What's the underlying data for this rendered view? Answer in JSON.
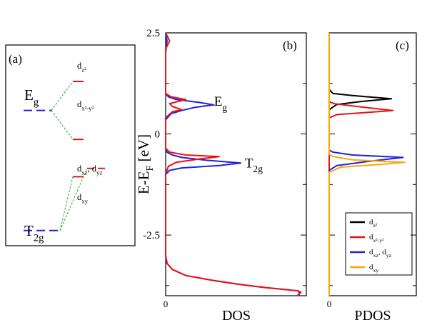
{
  "chart_data": [
    {
      "panel": "a",
      "type": "energy-level-diagram",
      "label": "(a)",
      "groups": [
        {
          "name": "E",
          "sub": "g",
          "color": "#2222dd",
          "energy": 1.3
        },
        {
          "name": "T",
          "sub": "2g",
          "color": "#2222dd",
          "energy": -1.6
        }
      ],
      "levels": [
        {
          "name": "d",
          "sub": "z²",
          "color": "#ee1111",
          "energy": 2.0,
          "parent": 0
        },
        {
          "name": "d",
          "sub": "x²-y²",
          "color": "#ee1111",
          "energy": 0.6,
          "parent": 0
        },
        {
          "name": "d",
          "sub": "xy",
          "color": "#ee1111",
          "energy": -0.3,
          "parent": 1
        },
        {
          "name": "d",
          "sub": "xz",
          "name2": ", d",
          "sub2": "yz",
          "color": "#ee1111",
          "energy": -0.1,
          "parent": 1
        }
      ],
      "connector_color": "#22aa22"
    },
    {
      "panel": "b",
      "type": "line",
      "label": "(b)",
      "xlabel": "DOS",
      "ylabel": "E-E",
      "ylabel_sub": "F",
      "ylabel_unit": " [eV]",
      "ylim": [
        -4.0,
        2.5
      ],
      "xlim": [
        0,
        1
      ],
      "yticks": [
        2.5,
        0,
        -2.5
      ],
      "yticklabels": [
        "2.5",
        "0",
        "-2.5"
      ],
      "xticks": [
        0
      ],
      "xticklabels": [
        "0"
      ],
      "annotations": [
        {
          "text": "E",
          "sub": "g",
          "x": 0.34,
          "y": 0.8
        },
        {
          "text": "T",
          "sub": "2g",
          "x": 0.57,
          "y": -0.72
        }
      ],
      "series": [
        {
          "color": "#2222dd",
          "points": [
            [
              0.0,
              2.5
            ],
            [
              0.01,
              2.3
            ],
            [
              0.0,
              2.0
            ],
            [
              0.0,
              1.3
            ],
            [
              0.0,
              1.0
            ],
            [
              0.02,
              0.92
            ],
            [
              0.08,
              0.85
            ],
            [
              0.25,
              0.78
            ],
            [
              0.36,
              0.72
            ],
            [
              0.22,
              0.66
            ],
            [
              0.12,
              0.58
            ],
            [
              0.04,
              0.5
            ],
            [
              0.0,
              0.35
            ],
            [
              0.0,
              -0.35
            ],
            [
              0.01,
              -0.45
            ],
            [
              0.05,
              -0.52
            ],
            [
              0.12,
              -0.58
            ],
            [
              0.3,
              -0.65
            ],
            [
              0.56,
              -0.72
            ],
            [
              0.4,
              -0.78
            ],
            [
              0.12,
              -0.84
            ],
            [
              0.03,
              -0.9
            ],
            [
              0.0,
              -1.0
            ],
            [
              0.0,
              -2.0
            ],
            [
              0.0,
              -3.0
            ],
            [
              0.01,
              -3.2
            ],
            [
              0.05,
              -3.35
            ],
            [
              0.15,
              -3.5
            ],
            [
              0.35,
              -3.62
            ],
            [
              0.55,
              -3.72
            ],
            [
              0.75,
              -3.8
            ],
            [
              0.9,
              -3.85
            ],
            [
              0.99,
              -3.88
            ],
            [
              1.0,
              -3.95
            ],
            [
              0.99,
              -4.0
            ]
          ]
        },
        {
          "color": "#ee1111",
          "points": [
            [
              0.0,
              2.5
            ],
            [
              0.03,
              2.3
            ],
            [
              0.0,
              2.1
            ],
            [
              0.0,
              1.3
            ],
            [
              0.0,
              1.0
            ],
            [
              0.04,
              0.92
            ],
            [
              0.15,
              0.85
            ],
            [
              0.09,
              0.8
            ],
            [
              0.03,
              0.75
            ],
            [
              0.05,
              0.68
            ],
            [
              0.12,
              0.6
            ],
            [
              0.05,
              0.55
            ],
            [
              0.0,
              0.4
            ],
            [
              0.0,
              -0.35
            ],
            [
              0.03,
              -0.45
            ],
            [
              0.15,
              -0.52
            ],
            [
              0.4,
              -0.56
            ],
            [
              0.25,
              -0.62
            ],
            [
              0.08,
              -0.7
            ],
            [
              0.02,
              -0.8
            ],
            [
              0.0,
              -1.0
            ],
            [
              0.0,
              -2.0
            ],
            [
              0.0,
              -3.0
            ],
            [
              0.01,
              -3.2
            ],
            [
              0.05,
              -3.35
            ],
            [
              0.15,
              -3.5
            ],
            [
              0.35,
              -3.62
            ],
            [
              0.55,
              -3.72
            ],
            [
              0.75,
              -3.8
            ],
            [
              0.9,
              -3.85
            ],
            [
              0.99,
              -3.88
            ],
            [
              1.01,
              -3.92
            ],
            [
              0.98,
              -4.0
            ]
          ]
        }
      ]
    },
    {
      "panel": "c",
      "type": "line",
      "label": "(c)",
      "xlabel": "PDOS",
      "ylim": [
        -4.0,
        2.5
      ],
      "xlim": [
        0,
        1
      ],
      "xticks": [
        0
      ],
      "xticklabels": [
        "0"
      ],
      "legend_position": "bottom-right",
      "series": [
        {
          "name": "d",
          "sub": "z²",
          "color": "#000000",
          "points": [
            [
              0.0,
              2.5
            ],
            [
              0.0,
              1.1
            ],
            [
              0.05,
              1.0
            ],
            [
              0.3,
              0.95
            ],
            [
              0.8,
              0.87
            ],
            [
              0.4,
              0.8
            ],
            [
              0.1,
              0.73
            ],
            [
              0.0,
              0.6
            ],
            [
              0.0,
              -4.0
            ]
          ]
        },
        {
          "name": "d",
          "sub": "x²-y²",
          "color": "#ee1111",
          "points": [
            [
              0.0,
              2.5
            ],
            [
              0.0,
              0.8
            ],
            [
              0.06,
              0.75
            ],
            [
              0.45,
              0.66
            ],
            [
              0.82,
              0.58
            ],
            [
              0.4,
              0.52
            ],
            [
              0.1,
              0.48
            ],
            [
              0.0,
              0.4
            ],
            [
              0.0,
              -4.0
            ]
          ]
        },
        {
          "name": "d",
          "sub": "xz",
          "name2": ", d",
          "sub2": "yz",
          "color": "#2222dd",
          "points": [
            [
              0.0,
              2.5
            ],
            [
              0.0,
              -0.4
            ],
            [
              0.05,
              -0.45
            ],
            [
              0.3,
              -0.52
            ],
            [
              0.95,
              -0.58
            ],
            [
              0.5,
              -0.68
            ],
            [
              0.1,
              -0.78
            ],
            [
              0.0,
              -0.9
            ],
            [
              0.0,
              -4.0
            ]
          ]
        },
        {
          "name": "d",
          "sub": "xy",
          "color": "#ffa500",
          "points": [
            [
              0.0,
              2.5
            ],
            [
              0.0,
              -0.5
            ],
            [
              0.05,
              -0.56
            ],
            [
              0.3,
              -0.64
            ],
            [
              0.97,
              -0.7
            ],
            [
              0.6,
              -0.76
            ],
            [
              0.15,
              -0.82
            ],
            [
              0.0,
              -0.95
            ],
            [
              0.0,
              -4.0
            ]
          ]
        }
      ]
    }
  ]
}
